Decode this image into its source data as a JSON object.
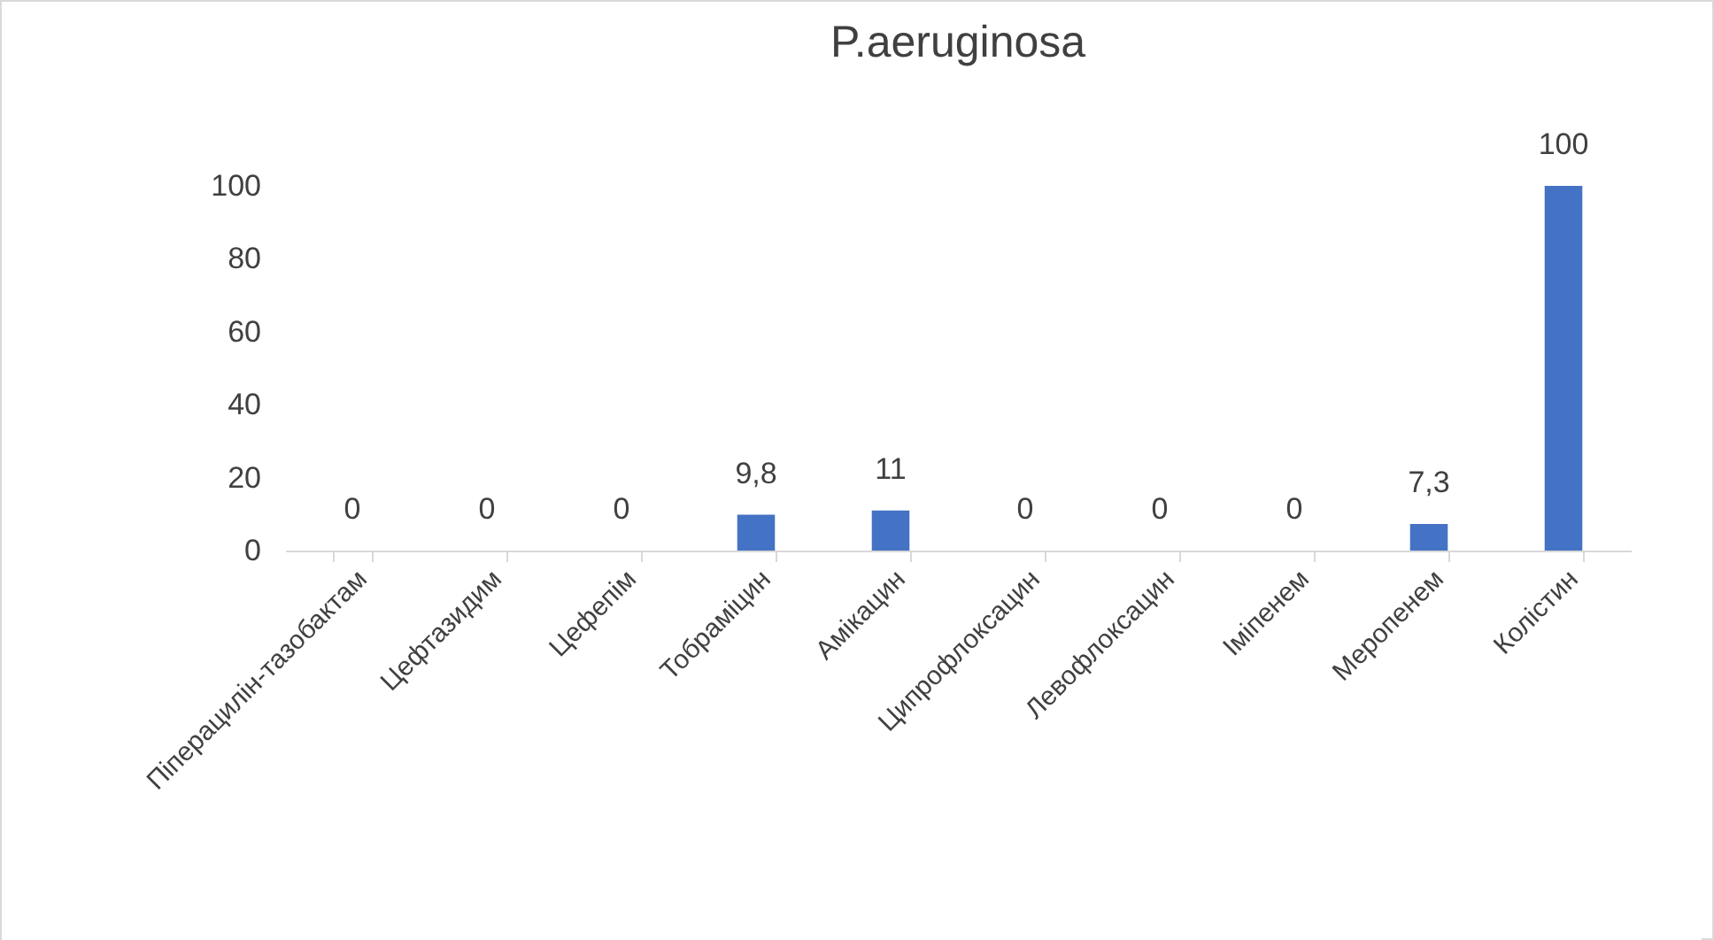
{
  "chart_data": {
    "type": "bar",
    "title": "P.aeruginosa",
    "categories": [
      "Піперацилін-тазобактам",
      "Цефтазидим",
      "Цефепім",
      "Тобраміцин",
      "Амікацин",
      "Ципрофлоксацин",
      "Левофлоксацин",
      "Іміпенем",
      "Меропенем",
      "Колістин"
    ],
    "values": [
      0,
      0,
      0,
      9.8,
      11,
      0,
      0,
      0,
      7.3,
      100
    ],
    "value_labels": [
      "0",
      "0",
      "0",
      "9,8",
      "11",
      "0",
      "0",
      "0",
      "7,3",
      "100"
    ],
    "color": "#4472c4",
    "ylim": [
      0,
      100
    ],
    "yticks": [
      0,
      20,
      40,
      60,
      80,
      100
    ],
    "grid": false
  }
}
